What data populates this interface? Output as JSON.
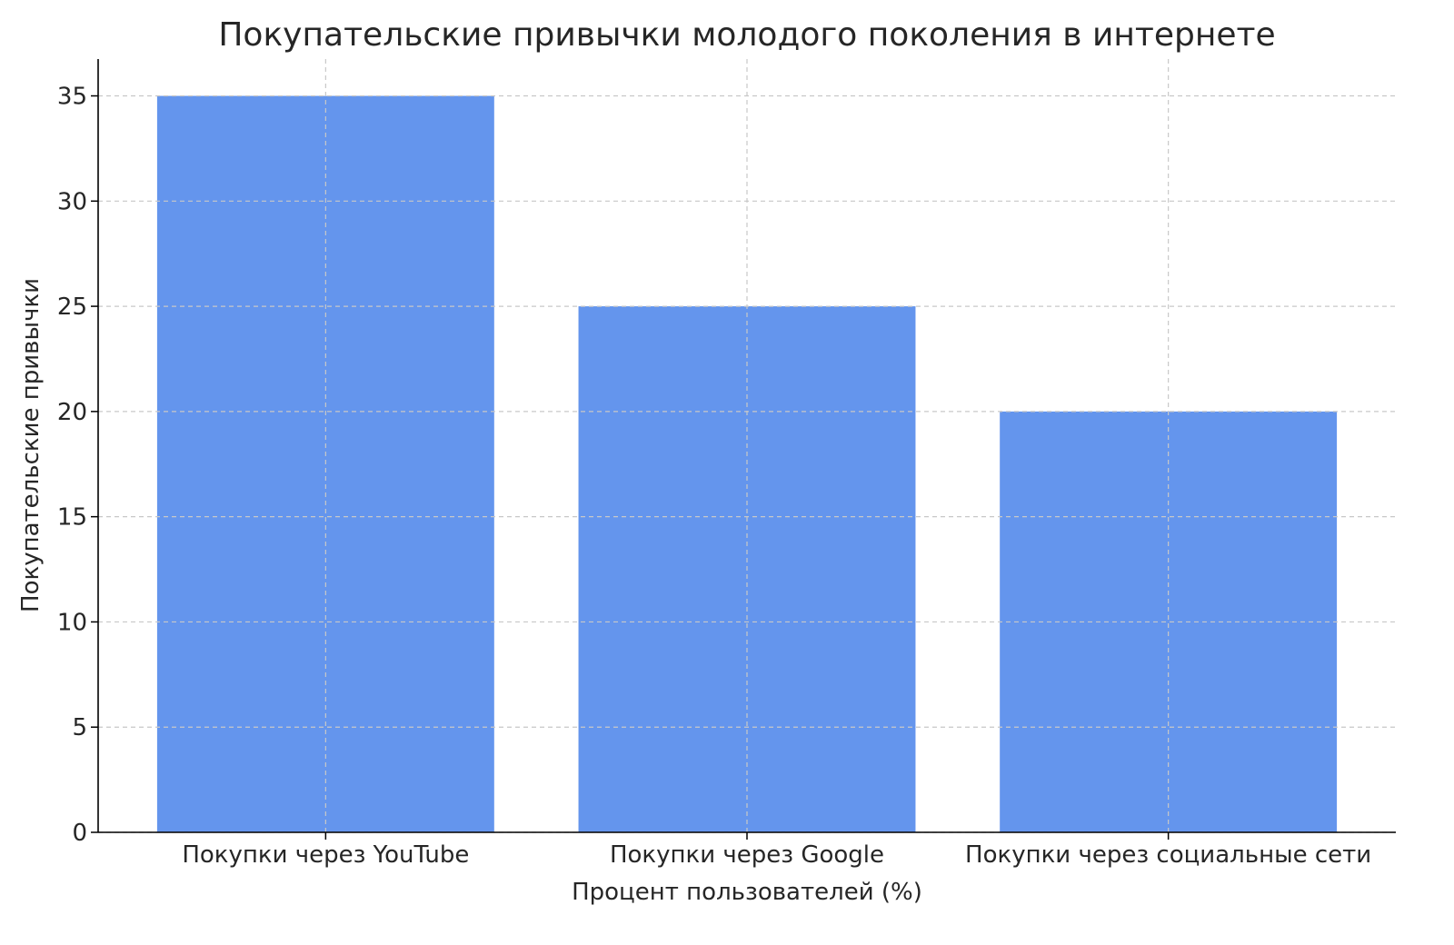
{
  "chart_data": {
    "type": "bar",
    "title": "Покупательские привычки молодого поколения в интернете",
    "xlabel": "Процент пользователей (%)",
    "ylabel": "Покупательские привычки",
    "categories": [
      "Покупки через YouTube",
      "Покупки через Google",
      "Покупки через социальные сети"
    ],
    "values": [
      35,
      25,
      20
    ],
    "ylim": [
      0,
      36.75
    ],
    "yticks": [
      0,
      5,
      10,
      15,
      20,
      25,
      30,
      35
    ],
    "grid": true,
    "bar_color": "#6495ED"
  }
}
